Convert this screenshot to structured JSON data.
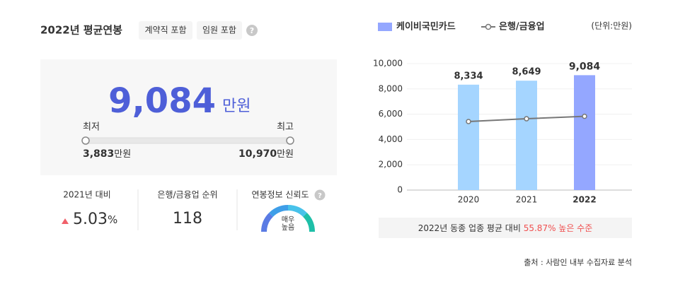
{
  "summary": {
    "title": "2022년 평균연봉",
    "tags": [
      "계약직 포함",
      "임원 포함"
    ],
    "help": "?",
    "average": "9,084",
    "average_unit": "만원",
    "min_label": "최저",
    "max_label": "최고",
    "min_value": "3,883",
    "max_value": "10,970",
    "range_unit": "만원",
    "change_label": "2021년 대비",
    "change_value": "5.03",
    "change_unit": "%",
    "rank_label": "은행/금융업 순위",
    "rank_value": "118",
    "reliability_label": "연봉정보 신뢰도",
    "reliability_value": [
      "매우",
      "높음"
    ]
  },
  "chart_data": {
    "type": "bar",
    "unit": "(단위:만원)",
    "categories": [
      "2020",
      "2021",
      "2022"
    ],
    "series": [
      {
        "name": "케이비국민카드",
        "type": "bar",
        "color": "#94a7ff",
        "bar_colors": [
          "#a5d5ff",
          "#a5d5ff",
          "#94a7ff"
        ],
        "values": [
          8334,
          8649,
          9084
        ],
        "value_labels": [
          "8,334",
          "8,649",
          "9,084"
        ]
      },
      {
        "name": "은행/금융업",
        "type": "line",
        "color": "#777777",
        "values": [
          5420,
          5640,
          5830
        ]
      }
    ],
    "ylim": [
      0,
      10000
    ],
    "yticks": [
      0,
      {
        "value": 2000,
        "label": "2,000"
      },
      {
        "value": 4000,
        "label": "4,000"
      },
      {
        "value": 6000,
        "label": "6,000"
      },
      {
        "value": 8000,
        "label": "8,000"
      },
      {
        "value": 10000,
        "label": "10,000"
      }
    ],
    "grid": true,
    "note_prefix": "2022년 동종 업종 평균 대비 ",
    "note_highlight": "55.87% 높은 수준"
  },
  "source": "출처 : 사람인 내부 수집자료 분석"
}
